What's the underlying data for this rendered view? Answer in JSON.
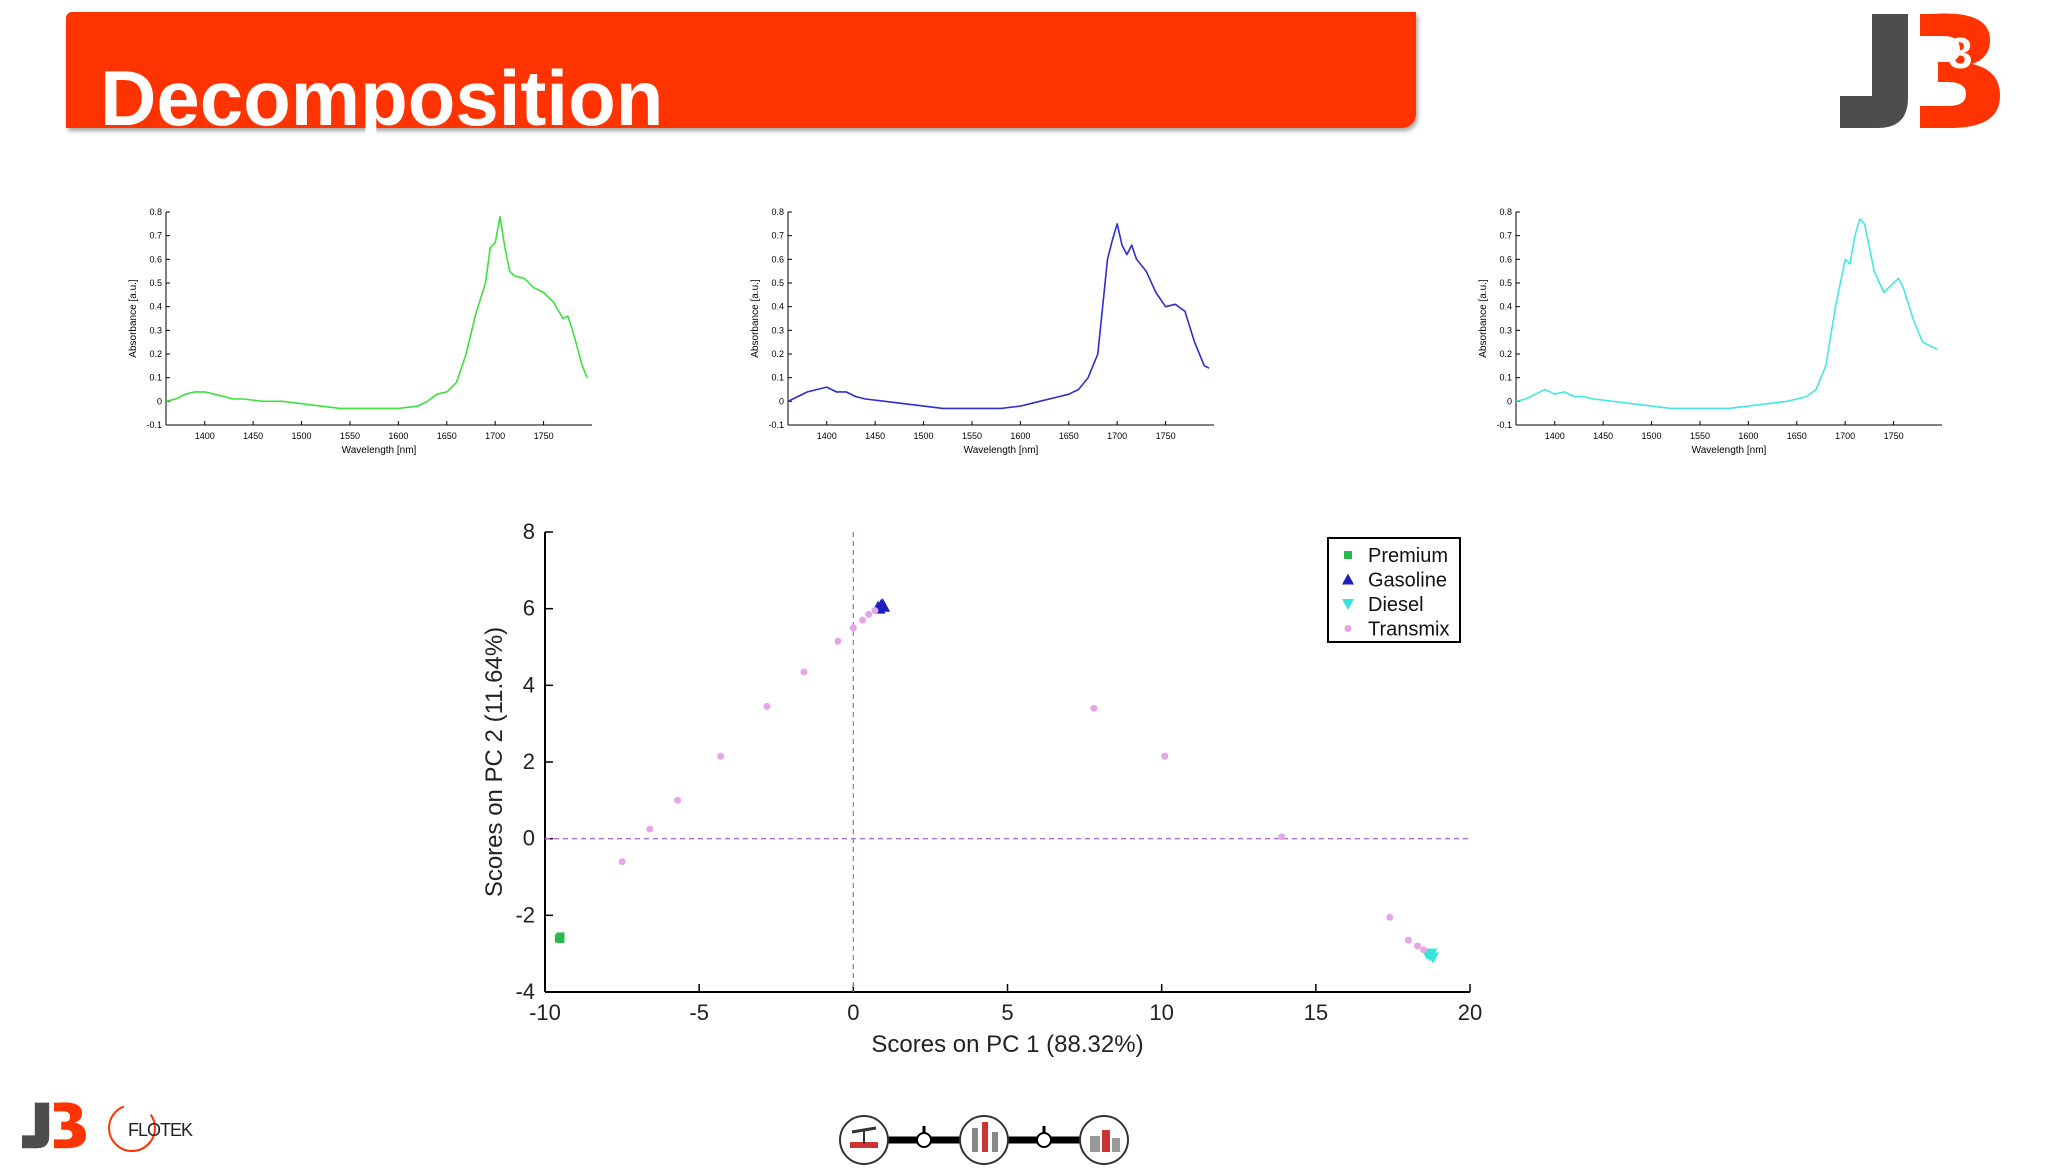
{
  "slide": {
    "title": "Decomposition",
    "footer_logo_text": "FLOTEK",
    "logo_mark": "J3"
  },
  "colors": {
    "banner": "#ff3300",
    "logo_gray": "#4d4d4d",
    "logo_red": "#ff3300",
    "premium": "#2ab94f",
    "gasoline": "#1f1fbf",
    "diesel": "#33e6d9",
    "transmix": "#e6a6e6"
  },
  "chart_data": [
    {
      "type": "line",
      "ylabel": "Absorbance [a.u.]",
      "xlabel": "Wavelength [nm]",
      "xlim": [
        1360,
        1800
      ],
      "ylim": [
        -0.1,
        0.8
      ],
      "xticks": [
        "1400",
        "1450",
        "1500",
        "1550",
        "1600",
        "1650",
        "1700",
        "1750"
      ],
      "yticks": [
        "-0.1",
        "0",
        "0.1",
        "0.2",
        "0.3",
        "0.4",
        "0.5",
        "0.6",
        "0.7",
        "0.8"
      ],
      "color": "#3ee03e",
      "x": [
        1360,
        1370,
        1380,
        1390,
        1400,
        1410,
        1420,
        1430,
        1440,
        1460,
        1480,
        1500,
        1520,
        1540,
        1560,
        1580,
        1600,
        1620,
        1630,
        1640,
        1650,
        1660,
        1670,
        1680,
        1690,
        1695,
        1700,
        1705,
        1710,
        1715,
        1720,
        1730,
        1740,
        1750,
        1760,
        1770,
        1775,
        1780,
        1790,
        1795
      ],
      "values": [
        0.0,
        0.01,
        0.03,
        0.04,
        0.04,
        0.03,
        0.02,
        0.01,
        0.01,
        0.0,
        0.0,
        -0.01,
        -0.02,
        -0.03,
        -0.03,
        -0.03,
        -0.03,
        -0.02,
        0.0,
        0.03,
        0.04,
        0.08,
        0.2,
        0.37,
        0.5,
        0.65,
        0.67,
        0.78,
        0.65,
        0.55,
        0.53,
        0.52,
        0.48,
        0.46,
        0.42,
        0.35,
        0.36,
        0.3,
        0.15,
        0.1
      ]
    },
    {
      "type": "line",
      "ylabel": "Absorbance [a.u.]",
      "xlabel": "Wavelength [nm]",
      "xlim": [
        1360,
        1800
      ],
      "ylim": [
        -0.1,
        0.8
      ],
      "xticks": [
        "1400",
        "1450",
        "1500",
        "1550",
        "1600",
        "1650",
        "1700",
        "1750"
      ],
      "yticks": [
        "-0.1",
        "0",
        "0.1",
        "0.2",
        "0.3",
        "0.4",
        "0.5",
        "0.6",
        "0.7",
        "0.8"
      ],
      "color": "#2e2ecc",
      "x": [
        1360,
        1370,
        1380,
        1390,
        1400,
        1410,
        1420,
        1430,
        1440,
        1460,
        1480,
        1500,
        1520,
        1540,
        1560,
        1580,
        1600,
        1620,
        1640,
        1650,
        1660,
        1670,
        1680,
        1690,
        1695,
        1700,
        1705,
        1710,
        1715,
        1720,
        1730,
        1740,
        1750,
        1760,
        1770,
        1780,
        1790,
        1795
      ],
      "values": [
        0.0,
        0.02,
        0.04,
        0.05,
        0.06,
        0.04,
        0.04,
        0.02,
        0.01,
        0.0,
        -0.01,
        -0.02,
        -0.03,
        -0.03,
        -0.03,
        -0.03,
        -0.02,
        0.0,
        0.02,
        0.03,
        0.05,
        0.1,
        0.2,
        0.6,
        0.68,
        0.75,
        0.66,
        0.62,
        0.66,
        0.6,
        0.55,
        0.46,
        0.4,
        0.41,
        0.38,
        0.25,
        0.15,
        0.14
      ]
    },
    {
      "type": "line",
      "ylabel": "Absorbance [a.u.]",
      "xlabel": "Wavelength [nm]",
      "xlim": [
        1360,
        1800
      ],
      "ylim": [
        -0.1,
        0.8
      ],
      "xticks": [
        "1400",
        "1450",
        "1500",
        "1550",
        "1600",
        "1650",
        "1700",
        "1750"
      ],
      "yticks": [
        "-0.1",
        "0",
        "0.1",
        "0.2",
        "0.3",
        "0.4",
        "0.5",
        "0.6",
        "0.7",
        "0.8"
      ],
      "color": "#44e8e0",
      "x": [
        1360,
        1370,
        1380,
        1390,
        1400,
        1410,
        1420,
        1430,
        1440,
        1460,
        1480,
        1500,
        1520,
        1540,
        1560,
        1580,
        1600,
        1620,
        1640,
        1660,
        1670,
        1680,
        1690,
        1700,
        1705,
        1710,
        1715,
        1720,
        1725,
        1730,
        1740,
        1750,
        1755,
        1760,
        1770,
        1780,
        1790,
        1795
      ],
      "values": [
        0.0,
        0.01,
        0.03,
        0.05,
        0.03,
        0.04,
        0.02,
        0.02,
        0.01,
        0.0,
        -0.01,
        -0.02,
        -0.03,
        -0.03,
        -0.03,
        -0.03,
        -0.02,
        -0.01,
        0.0,
        0.02,
        0.05,
        0.15,
        0.4,
        0.6,
        0.58,
        0.7,
        0.77,
        0.75,
        0.65,
        0.55,
        0.46,
        0.5,
        0.52,
        0.48,
        0.35,
        0.25,
        0.23,
        0.22
      ]
    },
    {
      "type": "scatter",
      "xlabel": "Scores on PC 1 (88.32%)",
      "ylabel": "Scores on PC 2 (11.64%)",
      "xlim": [
        -10,
        20
      ],
      "ylim": [
        -4,
        8
      ],
      "xticks": [
        "-10",
        "-5",
        "0",
        "5",
        "10",
        "15",
        "20"
      ],
      "yticks": [
        "-4",
        "-2",
        "0",
        "2",
        "4",
        "6",
        "8"
      ],
      "reference_lines": {
        "x": 0,
        "y": 0
      },
      "legend_position": "top-right",
      "series": [
        {
          "name": "Premium",
          "marker": "square",
          "color": "#2ab94f",
          "points": [
            [
              -9.5,
              -2.55
            ],
            [
              -9.55,
              -2.6
            ],
            [
              -9.5,
              -2.62
            ]
          ]
        },
        {
          "name": "Gasoline",
          "marker": "triangle-up",
          "color": "#1f1fbf",
          "points": [
            [
              0.8,
              6.05
            ],
            [
              0.9,
              6.1
            ],
            [
              1.0,
              6.05
            ],
            [
              0.85,
              6.0
            ],
            [
              0.95,
              6.12
            ]
          ]
        },
        {
          "name": "Diesel",
          "marker": "triangle-down",
          "color": "#33e6d9",
          "points": [
            [
              18.6,
              -3.0
            ],
            [
              18.7,
              -3.05
            ],
            [
              18.8,
              -3.1
            ],
            [
              18.75,
              -3.0
            ]
          ]
        },
        {
          "name": "Transmix",
          "marker": "dot",
          "color": "#e6a6e6",
          "points": [
            [
              -7.5,
              -0.6
            ],
            [
              -6.6,
              0.25
            ],
            [
              -5.7,
              1.0
            ],
            [
              -4.3,
              2.15
            ],
            [
              -2.8,
              3.45
            ],
            [
              -1.6,
              4.35
            ],
            [
              -0.5,
              5.15
            ],
            [
              0.0,
              5.5
            ],
            [
              0.3,
              5.7
            ],
            [
              0.5,
              5.85
            ],
            [
              0.7,
              5.95
            ],
            [
              7.8,
              3.4
            ],
            [
              10.1,
              2.15
            ],
            [
              13.9,
              0.05
            ],
            [
              17.4,
              -2.05
            ],
            [
              18.0,
              -2.65
            ],
            [
              18.3,
              -2.8
            ],
            [
              18.5,
              -2.9
            ]
          ]
        }
      ]
    }
  ]
}
